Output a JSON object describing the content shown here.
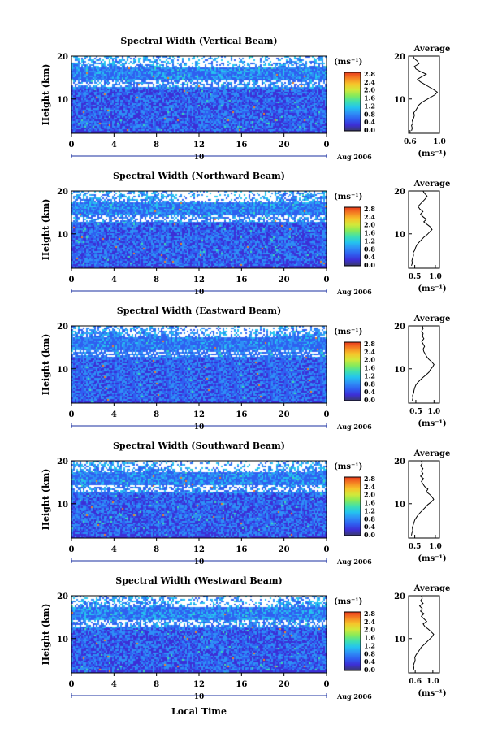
{
  "figure": {
    "xlabel": "Local Time",
    "ylabel": "Height (km)",
    "date_label": "Aug 2006",
    "date_day": "10",
    "colorbar_unit": "(ms⁻¹)",
    "profile_title": "Average",
    "profile_xlabel": "(ms⁻¹)"
  },
  "colorbar": {
    "ticks": [
      "0.0",
      "0.4",
      "0.8",
      "1.2",
      "1.6",
      "2.0",
      "2.4",
      "2.8"
    ],
    "colors": [
      "#3a3a6a",
      "#3c2fd6",
      "#2f5ff0",
      "#2e8ff6",
      "#24c4ee",
      "#3ee0b0",
      "#86ea5a",
      "#d2e83a",
      "#f6c52a",
      "#f58222",
      "#ea3a1c"
    ]
  },
  "chart_data": [
    {
      "type": "heatmap",
      "title": "Spectral Width (Vertical Beam)",
      "x_ticks": [
        "0",
        "4",
        "8",
        "12",
        "16",
        "20",
        "0"
      ],
      "y_ticks": [
        "10",
        "20"
      ],
      "xlim": [
        0,
        24
      ],
      "ylim": [
        2,
        20
      ],
      "profile": {
        "type": "line",
        "xlim": [
          0.58,
          1.0
        ],
        "x_ticks": [
          "0.6",
          "1.0"
        ],
        "y_ticks": [
          "10",
          "20"
        ],
        "x": [
          0.62,
          0.63,
          0.62,
          0.64,
          0.63,
          0.65,
          0.66,
          0.65,
          0.68,
          0.7,
          0.72,
          0.76,
          0.82,
          0.88,
          0.94,
          0.97,
          0.92,
          0.86,
          0.8,
          0.74,
          0.7,
          0.76,
          0.82,
          0.74,
          0.68,
          0.66,
          0.72,
          0.7,
          0.66,
          0.64
        ],
        "y": [
          2.6,
          3.2,
          3.8,
          4.4,
          5,
          5.6,
          6.2,
          6.8,
          7.4,
          8,
          8.6,
          9.2,
          9.8,
          10.4,
          11,
          11.6,
          12.2,
          12.8,
          13.4,
          14,
          14.6,
          15.2,
          15.8,
          16.4,
          17,
          17.6,
          18.2,
          18.8,
          19.4,
          20
        ]
      }
    },
    {
      "type": "heatmap",
      "title": "Spectral Width (Northward Beam)",
      "x_ticks": [
        "0",
        "4",
        "8",
        "12",
        "16",
        "20",
        "0"
      ],
      "y_ticks": [
        "10",
        "20"
      ],
      "xlim": [
        0,
        24
      ],
      "ylim": [
        2,
        20
      ],
      "profile": {
        "type": "line",
        "xlim": [
          0.35,
          1.1
        ],
        "x_ticks": [
          "0.5",
          "1.0"
        ],
        "y_ticks": [
          "10",
          "20"
        ],
        "x": [
          0.42,
          0.44,
          0.43,
          0.45,
          0.47,
          0.46,
          0.5,
          0.52,
          0.55,
          0.6,
          0.66,
          0.72,
          0.8,
          0.86,
          0.92,
          0.88,
          0.8,
          0.72,
          0.78,
          0.7,
          0.64,
          0.7,
          0.62,
          0.58,
          0.64,
          0.7,
          0.76,
          0.8,
          0.74,
          0.7
        ],
        "y": [
          2.6,
          3.2,
          3.8,
          4.4,
          5,
          5.6,
          6.2,
          6.8,
          7.4,
          8,
          8.6,
          9.2,
          9.8,
          10.4,
          11,
          11.6,
          12.2,
          12.8,
          13.4,
          14,
          14.6,
          15.2,
          15.8,
          16.4,
          17,
          17.6,
          18.2,
          18.8,
          19.4,
          20
        ]
      }
    },
    {
      "type": "heatmap",
      "title": "Spectral Width (Eastward Beam)",
      "x_ticks": [
        "0",
        "4",
        "8",
        "12",
        "16",
        "20",
        "0"
      ],
      "y_ticks": [
        "10",
        "20"
      ],
      "xlim": [
        0,
        24
      ],
      "ylim": [
        2,
        20
      ],
      "profile": {
        "type": "line",
        "xlim": [
          0.3,
          1.15
        ],
        "x_ticks": [
          "0.5",
          "1.0"
        ],
        "y_ticks": [
          "10",
          "20"
        ],
        "x": [
          0.4,
          0.42,
          0.41,
          0.44,
          0.45,
          0.47,
          0.5,
          0.55,
          0.62,
          0.7,
          0.78,
          0.86,
          0.9,
          0.96,
          1.0,
          0.94,
          0.86,
          0.8,
          0.76,
          0.72,
          0.7,
          0.74,
          0.7,
          0.66,
          0.72,
          0.68,
          0.7,
          0.66,
          0.7,
          0.68
        ],
        "y": [
          2.6,
          3.2,
          3.8,
          4.4,
          5,
          5.6,
          6.2,
          6.8,
          7.4,
          8,
          8.6,
          9.2,
          9.8,
          10.4,
          11,
          11.6,
          12.2,
          12.8,
          13.4,
          14,
          14.6,
          15.2,
          15.8,
          16.4,
          17,
          17.6,
          18.2,
          18.8,
          19.4,
          20
        ]
      }
    },
    {
      "type": "heatmap",
      "title": "Spectral Width (Southward Beam)",
      "x_ticks": [
        "0",
        "4",
        "8",
        "12",
        "16",
        "20",
        "0"
      ],
      "y_ticks": [
        "10",
        "20"
      ],
      "xlim": [
        0,
        24
      ],
      "ylim": [
        2,
        20
      ],
      "profile": {
        "type": "line",
        "xlim": [
          0.35,
          1.1
        ],
        "x_ticks": [
          "0.5",
          "1.0"
        ],
        "y_ticks": [
          "10",
          "20"
        ],
        "x": [
          0.42,
          0.43,
          0.45,
          0.44,
          0.46,
          0.48,
          0.5,
          0.54,
          0.58,
          0.64,
          0.7,
          0.76,
          0.82,
          0.9,
          0.96,
          0.92,
          0.86,
          0.78,
          0.82,
          0.74,
          0.7,
          0.66,
          0.72,
          0.64,
          0.7,
          0.66,
          0.7,
          0.64,
          0.68,
          0.66
        ],
        "y": [
          2.6,
          3.2,
          3.8,
          4.4,
          5,
          5.6,
          6.2,
          6.8,
          7.4,
          8,
          8.6,
          9.2,
          9.8,
          10.4,
          11,
          11.6,
          12.2,
          12.8,
          13.4,
          14,
          14.6,
          15.2,
          15.8,
          16.4,
          17,
          17.6,
          18.2,
          18.8,
          19.4,
          20
        ]
      }
    },
    {
      "type": "heatmap",
      "title": "Spectral Width (Westward Beam)",
      "x_ticks": [
        "0",
        "4",
        "8",
        "12",
        "16",
        "20",
        "0"
      ],
      "y_ticks": [
        "10",
        "20"
      ],
      "xlim": [
        0,
        24
      ],
      "ylim": [
        2,
        20
      ],
      "profile": {
        "type": "line",
        "xlim": [
          0.45,
          1.15
        ],
        "x_ticks": [
          "0.6",
          "1.0"
        ],
        "y_ticks": [
          "10",
          "20"
        ],
        "x": [
          0.56,
          0.57,
          0.56,
          0.58,
          0.6,
          0.59,
          0.62,
          0.66,
          0.7,
          0.74,
          0.8,
          0.86,
          0.92,
          0.98,
          1.02,
          0.96,
          0.9,
          0.82,
          0.78,
          0.86,
          0.8,
          0.74,
          0.8,
          0.72,
          0.76,
          0.7,
          0.78,
          0.72,
          0.76,
          0.74
        ],
        "y": [
          2.6,
          3.2,
          3.8,
          4.4,
          5,
          5.6,
          6.2,
          6.8,
          7.4,
          8,
          8.6,
          9.2,
          9.8,
          10.4,
          11,
          11.6,
          12.2,
          12.8,
          13.4,
          14,
          14.6,
          15.2,
          15.8,
          16.4,
          17,
          17.6,
          18.2,
          18.8,
          19.4,
          20
        ]
      }
    }
  ]
}
